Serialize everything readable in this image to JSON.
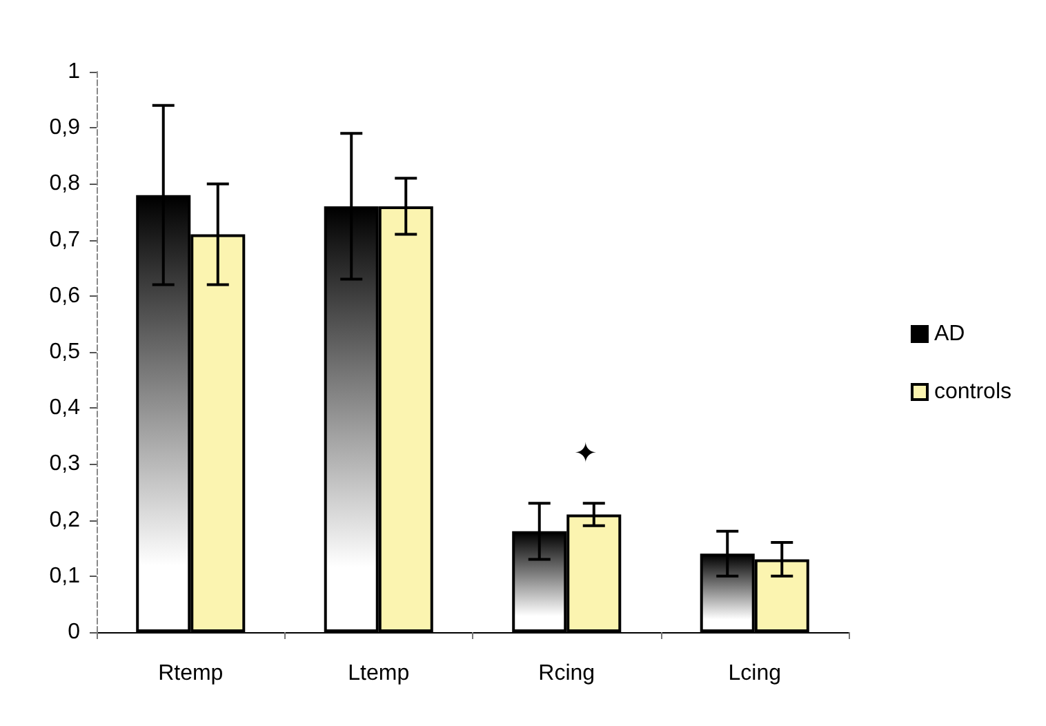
{
  "chart_data": {
    "type": "bar",
    "categories": [
      "Rtemp",
      "Ltemp",
      "Rcing",
      "Lcing"
    ],
    "series": [
      {
        "name": "AD",
        "color": "#000000",
        "values": [
          0.78,
          0.76,
          0.18,
          0.14
        ],
        "errors": [
          0.16,
          0.13,
          0.05,
          0.04
        ]
      },
      {
        "name": "controls",
        "color": "#fbf4b0",
        "values": [
          0.71,
          0.76,
          0.21,
          0.13
        ],
        "errors": [
          0.09,
          0.05,
          0.02,
          0.03
        ]
      }
    ],
    "ylim": [
      0,
      1
    ],
    "yticks": [
      {
        "value": 0,
        "label": "0"
      },
      {
        "value": 0.1,
        "label": "0,1"
      },
      {
        "value": 0.2,
        "label": "0,2"
      },
      {
        "value": 0.3,
        "label": "0,3"
      },
      {
        "value": 0.4,
        "label": "0,4"
      },
      {
        "value": 0.5,
        "label": "0,5"
      },
      {
        "value": 0.6,
        "label": "0,6"
      },
      {
        "value": 0.7,
        "label": "0,7"
      },
      {
        "value": 0.8,
        "label": "0,8"
      },
      {
        "value": 0.9,
        "label": "0,9"
      },
      {
        "value": 1,
        "label": "1"
      }
    ],
    "annotations": [
      "✦"
    ],
    "grid": false,
    "legend": "right"
  }
}
